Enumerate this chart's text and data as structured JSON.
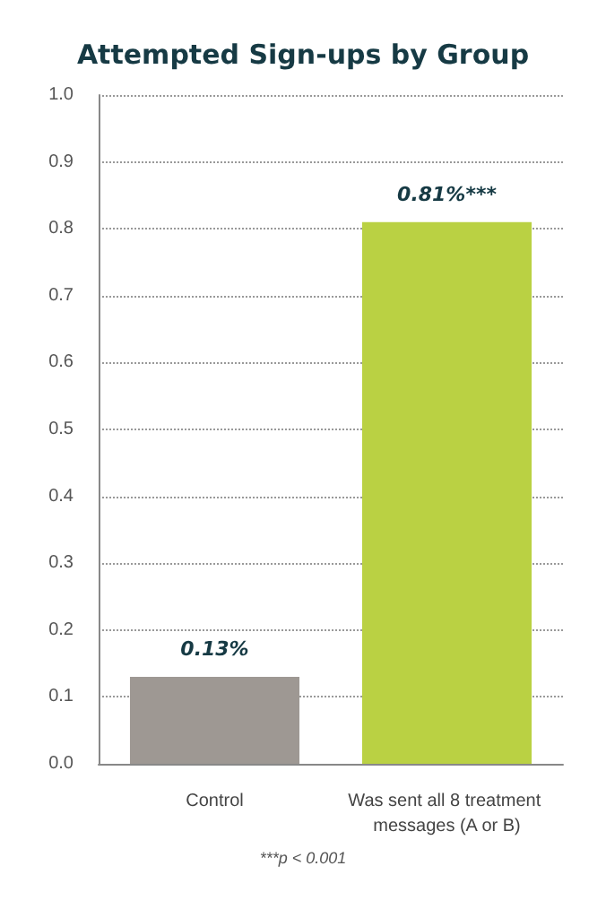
{
  "chart_data": {
    "type": "bar",
    "title": "Attempted Sign-ups by Group",
    "categories": [
      "Control",
      "Was sent all 8 treatment messages (A or B)"
    ],
    "values": [
      0.13,
      0.81
    ],
    "colors": [
      "#9e9893",
      "#bad143"
    ],
    "value_labels": [
      "0.13%",
      "0.81%***"
    ],
    "ylim": [
      0,
      1
    ],
    "yticks": [
      {
        "value": 0,
        "label": "0.0"
      },
      {
        "value": 0.1,
        "label": "0.1"
      },
      {
        "value": 0.2,
        "label": "0.2"
      },
      {
        "value": 0.3,
        "label": "0.3"
      },
      {
        "value": 0.4,
        "label": "0.4"
      },
      {
        "value": 0.5,
        "label": "0.5"
      },
      {
        "value": 0.6,
        "label": "0.6"
      },
      {
        "value": 0.7,
        "label": "0.7"
      },
      {
        "value": 0.8,
        "label": "0.8"
      },
      {
        "value": 0.9,
        "label": "0.9"
      },
      {
        "value": 1,
        "label": "1.0"
      }
    ],
    "grid": "y",
    "annotations": [
      "***p < 0.001"
    ]
  }
}
